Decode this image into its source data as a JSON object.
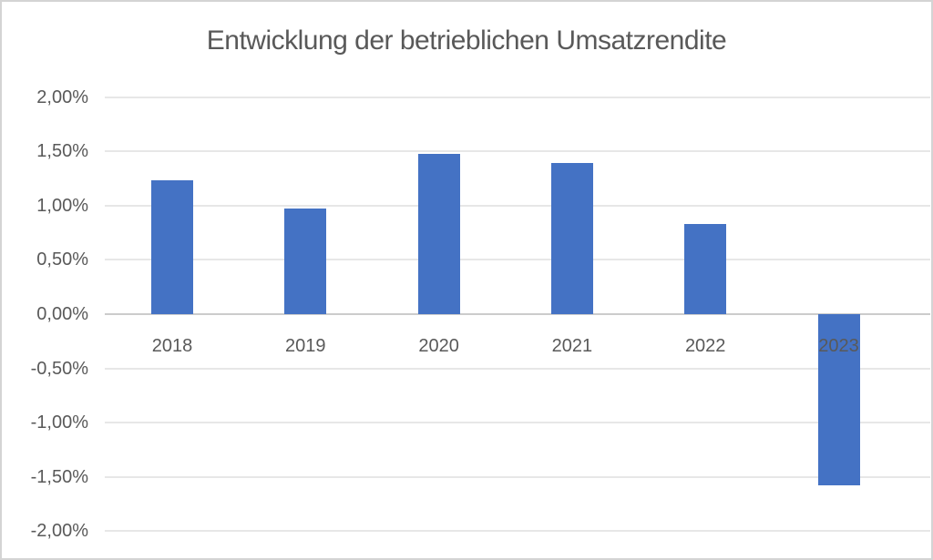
{
  "chart_data": {
    "type": "bar",
    "title": "Entwicklung der betrieblichen Umsatzrendite",
    "categories": [
      "2018",
      "2019",
      "2020",
      "2021",
      "2022",
      "2023"
    ],
    "values": [
      1.23,
      0.97,
      1.48,
      1.39,
      0.83,
      -1.58
    ],
    "series_unit": "percent",
    "number_format": "german decimal comma, two decimals, percent suffix",
    "xlabel": "",
    "ylabel": "",
    "ylim": [
      -2.0,
      2.0
    ],
    "ytick_step": 0.5,
    "ytick_labels": [
      "2,00%",
      "1,50%",
      "1,00%",
      "0,50%",
      "0,00%",
      "-0,50%",
      "-1,00%",
      "-1,50%",
      "-2,00%"
    ],
    "grid": true,
    "legend": "none",
    "zero_axis_visible": true,
    "colors": {
      "bar_fill": "#4472c4",
      "text": "#595959",
      "gridline": "#e7e7e7",
      "zero_axis_line": "#cccccc",
      "chart_border": "#d4d4d4",
      "background": "#ffffff"
    }
  }
}
